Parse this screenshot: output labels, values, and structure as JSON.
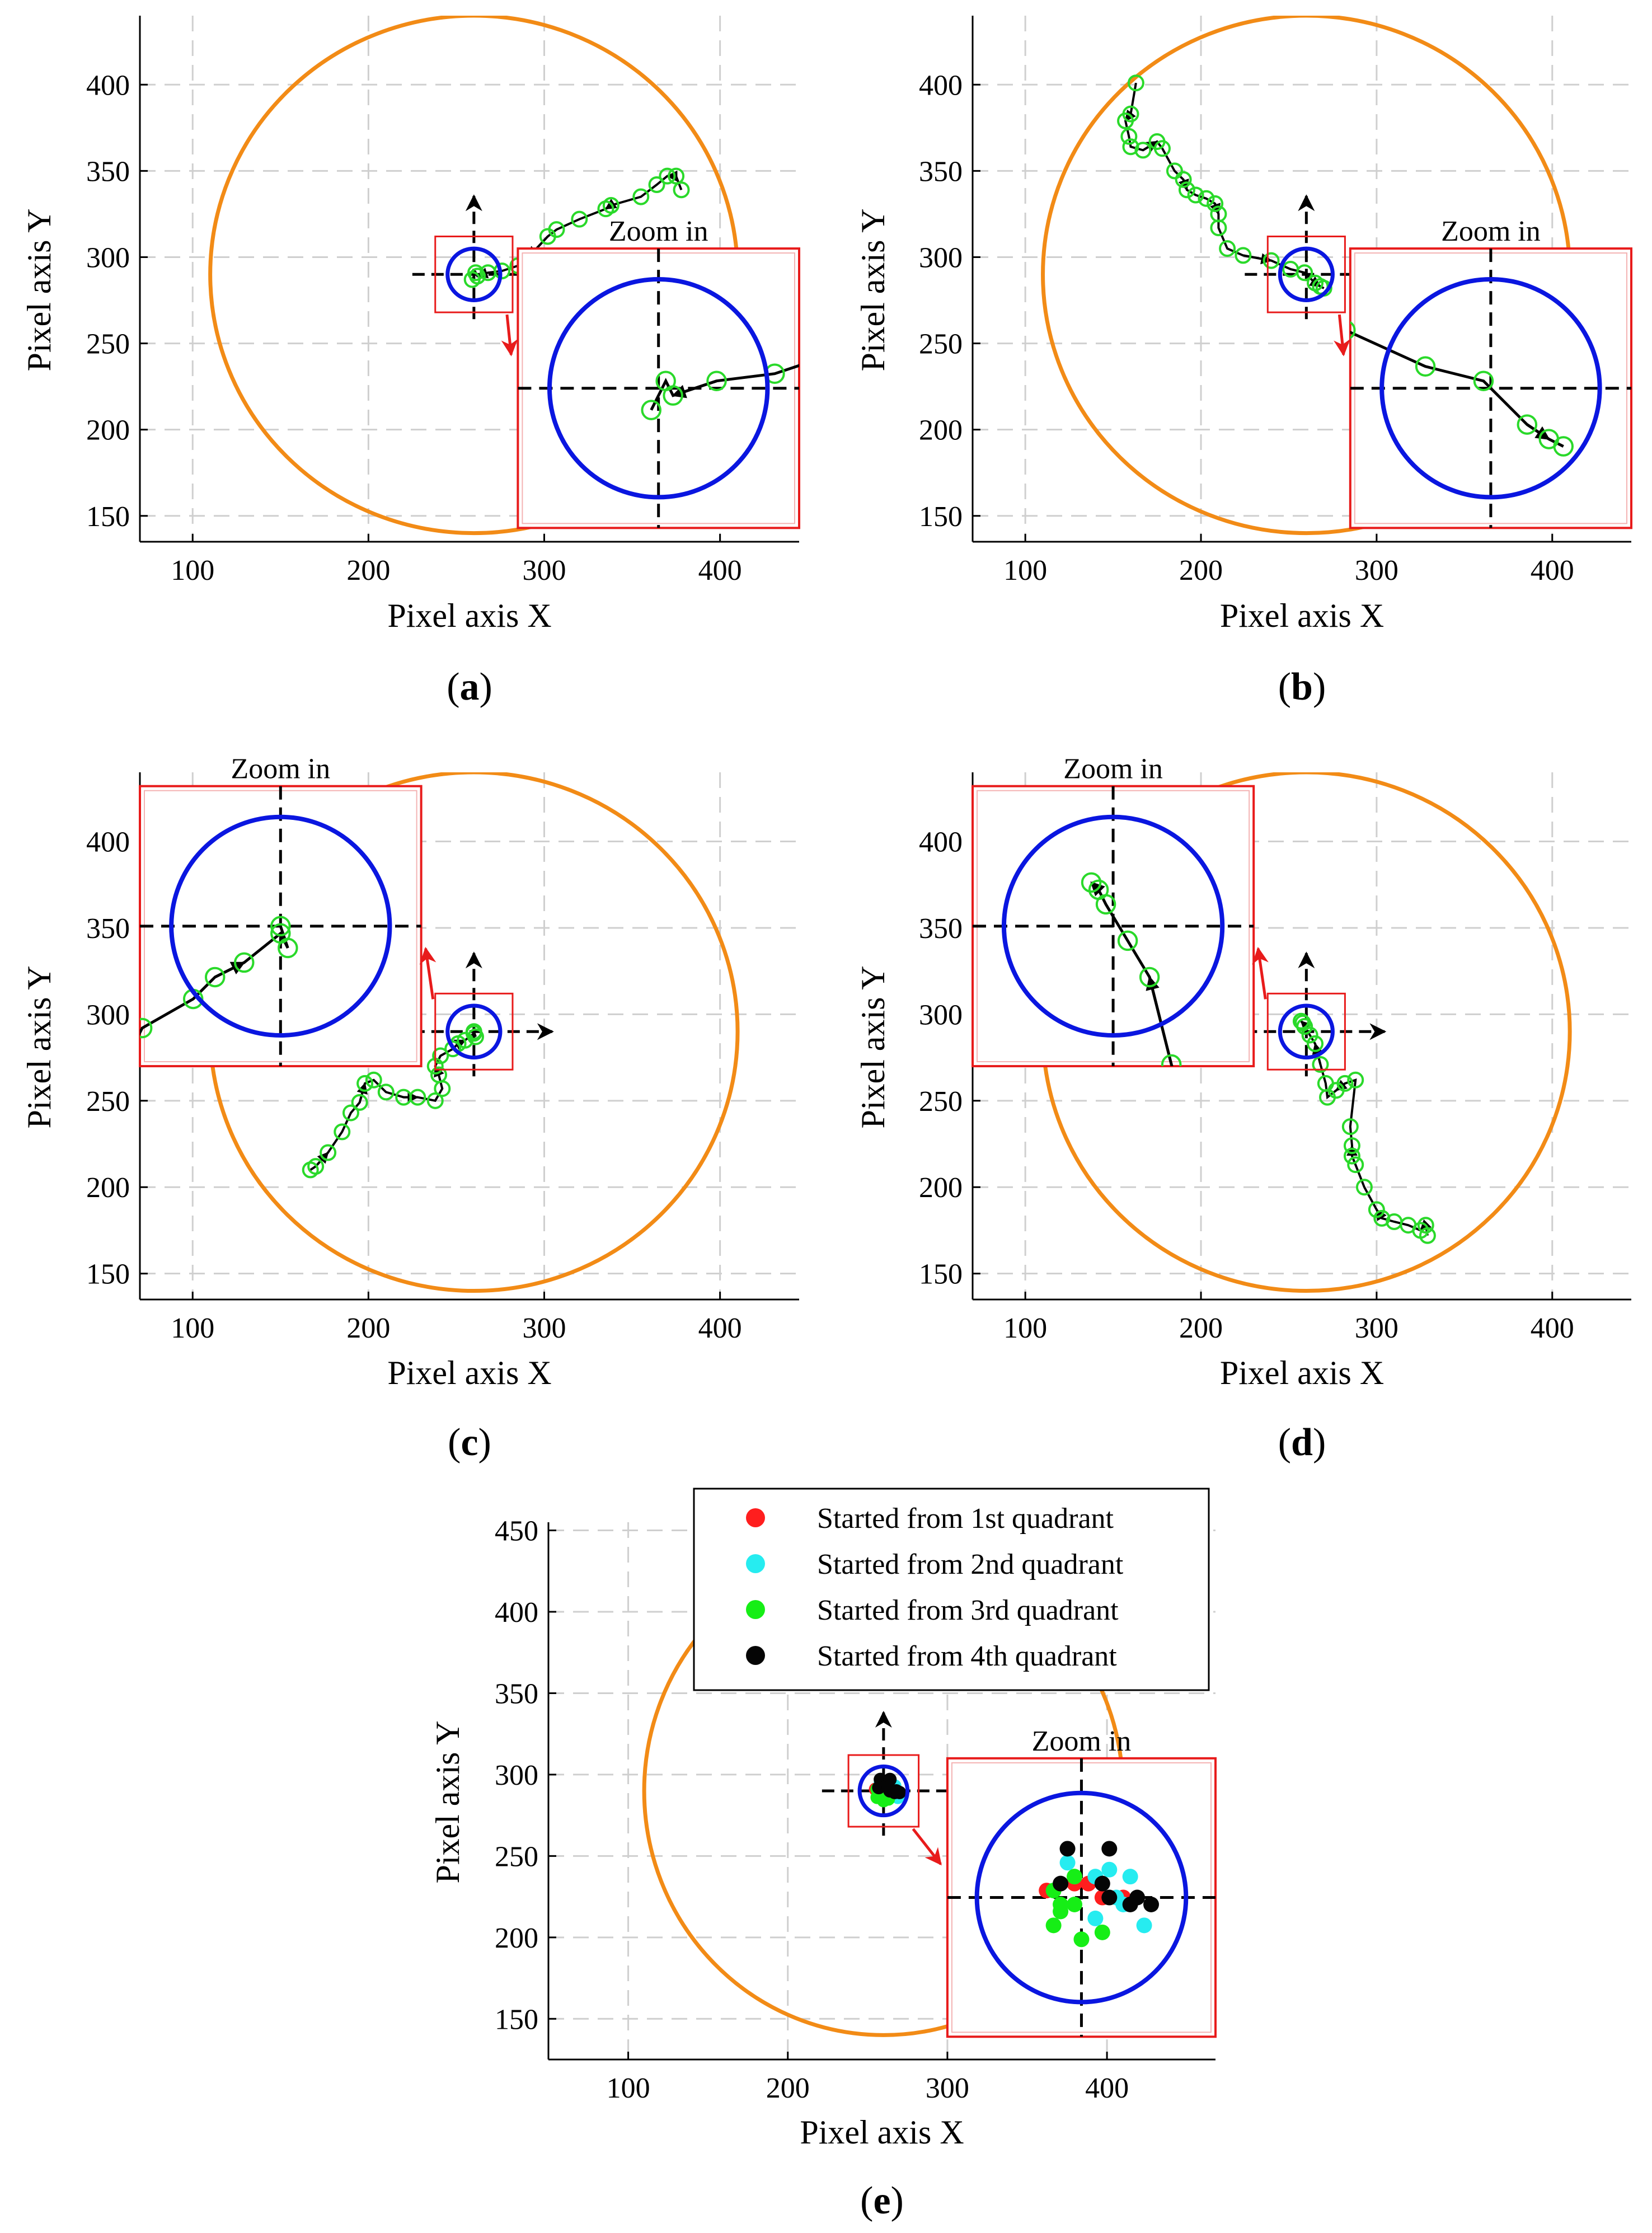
{
  "figure": {
    "zoom_label": "Zoom in",
    "colors": {
      "workspace_circle": "#F28B16",
      "target_circle": "#0A16E0",
      "zoom_box": "#E81B1B",
      "trajectory_marker": "#2AD92A",
      "trajectory_line": "#000000",
      "grid": "#CFCFCF"
    }
  },
  "chart_data": [
    {
      "type": "scatter",
      "label": "(a)",
      "label_letter": "a",
      "xlabel": "Pixel axis X",
      "ylabel": "Pixel axis Y",
      "xlim": [
        70,
        445
      ],
      "ylim": [
        135,
        440
      ],
      "xticks": [
        100,
        200,
        300,
        400
      ],
      "yticks": [
        150,
        200,
        250,
        300,
        350,
        400
      ],
      "grid": true,
      "workspace_circle": {
        "cx": 260,
        "cy": 290,
        "r": 150
      },
      "target": {
        "x": 260,
        "y": 290,
        "r": 15
      },
      "zoom_label_text": "Zoom in",
      "zoom": {
        "placement": "right",
        "window": [
          238,
          282,
          268,
          312
        ],
        "inset": [
          285,
          445,
          143,
          305
        ]
      },
      "trajectory": [
        [
          378,
          339
        ],
        [
          375,
          347
        ],
        [
          370,
          347
        ],
        [
          364,
          342
        ],
        [
          355,
          335
        ],
        [
          338,
          330
        ],
        [
          335,
          328
        ],
        [
          320,
          322
        ],
        [
          307,
          316
        ],
        [
          302,
          312
        ],
        [
          291,
          300
        ],
        [
          285,
          295
        ],
        [
          276,
          292
        ],
        [
          268,
          291
        ],
        [
          262,
          289
        ],
        [
          261,
          291
        ],
        [
          259,
          287
        ]
      ]
    },
    {
      "type": "scatter",
      "label": "(b)",
      "label_letter": "b",
      "xlabel": "Pixel axis X",
      "ylabel": "Pixel axis Y",
      "xlim": [
        70,
        445
      ],
      "ylim": [
        135,
        440
      ],
      "xticks": [
        100,
        200,
        300,
        400
      ],
      "yticks": [
        150,
        200,
        250,
        300,
        350,
        400
      ],
      "grid": true,
      "workspace_circle": {
        "cx": 260,
        "cy": 290,
        "r": 150
      },
      "target": {
        "x": 260,
        "y": 290,
        "r": 15
      },
      "zoom_label_text": "Zoom in",
      "zoom": {
        "placement": "right",
        "window": [
          238,
          282,
          268,
          312
        ],
        "inset": [
          285,
          445,
          143,
          305
        ]
      },
      "trajectory": [
        [
          163,
          401
        ],
        [
          160,
          383
        ],
        [
          157,
          379
        ],
        [
          159,
          370
        ],
        [
          160,
          364
        ],
        [
          167,
          362
        ],
        [
          175,
          367
        ],
        [
          178,
          363
        ],
        [
          185,
          350
        ],
        [
          190,
          345
        ],
        [
          192,
          339
        ],
        [
          197,
          336
        ],
        [
          203,
          334
        ],
        [
          208,
          331
        ],
        [
          210,
          325
        ],
        [
          210,
          317
        ],
        [
          215,
          305
        ],
        [
          224,
          301
        ],
        [
          240,
          298
        ],
        [
          251,
          293
        ],
        [
          259,
          291
        ],
        [
          265,
          285
        ],
        [
          268,
          283
        ],
        [
          270,
          282
        ]
      ]
    },
    {
      "type": "scatter",
      "label": "(c)",
      "label_letter": "c",
      "xlabel": "Pixel axis X",
      "ylabel": "Pixel axis Y",
      "xlim": [
        70,
        445
      ],
      "ylim": [
        135,
        440
      ],
      "xticks": [
        100,
        200,
        300,
        400
      ],
      "yticks": [
        150,
        200,
        250,
        300,
        350,
        400
      ],
      "grid": true,
      "workspace_circle": {
        "cx": 260,
        "cy": 290,
        "r": 150
      },
      "target": {
        "x": 260,
        "y": 290,
        "r": 15
      },
      "zoom_label_text": "Zoom in",
      "zoom": {
        "placement": "left",
        "window": [
          238,
          282,
          268,
          312
        ],
        "inset": [
          70,
          230,
          270,
          432
        ]
      },
      "trajectory": [
        [
          167,
          210
        ],
        [
          170,
          212
        ],
        [
          177,
          220
        ],
        [
          185,
          232
        ],
        [
          190,
          243
        ],
        [
          195,
          249
        ],
        [
          198,
          260
        ],
        [
          203,
          262
        ],
        [
          210,
          255
        ],
        [
          220,
          252
        ],
        [
          228,
          252
        ],
        [
          238,
          250
        ],
        [
          242,
          257
        ],
        [
          240,
          265
        ],
        [
          238,
          270
        ],
        [
          241,
          276
        ],
        [
          248,
          280
        ],
        [
          251,
          283
        ],
        [
          255,
          285
        ],
        [
          260,
          289
        ],
        [
          261,
          287
        ],
        [
          260,
          290
        ]
      ]
    },
    {
      "type": "scatter",
      "label": "(d)",
      "label_letter": "d",
      "xlabel": "Pixel axis X",
      "ylabel": "Pixel axis Y",
      "xlim": [
        70,
        445
      ],
      "ylim": [
        135,
        440
      ],
      "xticks": [
        100,
        200,
        300,
        400
      ],
      "yticks": [
        150,
        200,
        250,
        300,
        350,
        400
      ],
      "grid": true,
      "workspace_circle": {
        "cx": 260,
        "cy": 290,
        "r": 150
      },
      "target": {
        "x": 260,
        "y": 290,
        "r": 15
      },
      "zoom_label_text": "Zoom in",
      "zoom": {
        "placement": "left",
        "window": [
          238,
          282,
          268,
          312
        ],
        "inset": [
          70,
          230,
          270,
          432
        ]
      },
      "trajectory": [
        [
          329,
          172
        ],
        [
          328,
          178
        ],
        [
          325,
          175
        ],
        [
          318,
          178
        ],
        [
          310,
          180
        ],
        [
          303,
          182
        ],
        [
          300,
          187
        ],
        [
          293,
          200
        ],
        [
          288,
          213
        ],
        [
          286,
          218
        ],
        [
          286,
          224
        ],
        [
          285,
          235
        ],
        [
          288,
          262
        ],
        [
          282,
          260
        ],
        [
          277,
          256
        ],
        [
          272,
          252
        ],
        [
          271,
          260
        ],
        [
          268,
          271
        ],
        [
          265,
          283
        ],
        [
          262,
          288
        ],
        [
          259,
          293
        ],
        [
          258,
          295
        ],
        [
          257,
          296
        ]
      ]
    },
    {
      "type": "scatter",
      "label": "(e)",
      "label_letter": "e",
      "xlabel": "Pixel axis X",
      "ylabel": "Pixel axis Y",
      "xlim": [
        50,
        468
      ],
      "ylim": [
        125,
        455
      ],
      "xticks": [
        100,
        200,
        300,
        400
      ],
      "yticks": [
        150,
        200,
        250,
        300,
        350,
        400,
        450
      ],
      "grid": true,
      "workspace_circle": {
        "cx": 260,
        "cy": 290,
        "r": 150
      },
      "target": {
        "x": 260,
        "y": 290,
        "r": 15
      },
      "zoom_label_text": "Zoom in",
      "zoom": {
        "placement": "right",
        "window": [
          238,
          282,
          268,
          312
        ],
        "inset": [
          300,
          468,
          139,
          310
        ]
      },
      "legend": {
        "placement": "top",
        "entries": [
          {
            "label": "Started from 1st quadrant",
            "color": "#FF1E1E"
          },
          {
            "label": "Started from 2nd quadrant",
            "color": "#26ECF0"
          },
          {
            "label": "Started from 3rd quadrant",
            "color": "#16EE16"
          },
          {
            "label": "Started from 4th quadrant",
            "color": "#050505"
          }
        ]
      },
      "series": [
        {
          "name": "Started from 1st quadrant",
          "color": "#FF1E1E",
          "points": [
            [
              255,
              291
            ],
            [
              259,
              292
            ],
            [
              261,
              292
            ],
            [
              263,
              290
            ],
            [
              266,
              290
            ]
          ]
        },
        {
          "name": "Started from 2nd quadrant",
          "color": "#26ECF0",
          "points": [
            [
              258,
              295
            ],
            [
              262,
              293
            ],
            [
              264,
              294
            ],
            [
              266,
              289
            ],
            [
              262,
              287
            ],
            [
              267,
              293
            ],
            [
              269,
              286
            ],
            [
              265,
              290
            ]
          ]
        },
        {
          "name": "Started from 3rd quadrant",
          "color": "#16EE16",
          "points": [
            [
              256,
              291
            ],
            [
              259,
              293
            ],
            [
              256,
              286
            ],
            [
              260,
              284
            ],
            [
              257,
              288
            ],
            [
              259,
              289
            ],
            [
              263,
              285
            ],
            [
              257,
              289
            ]
          ]
        },
        {
          "name": "Started from 4th quadrant",
          "color": "#050505",
          "points": [
            [
              258,
              297
            ],
            [
              264,
              297
            ],
            [
              257,
              292
            ],
            [
              264,
              290
            ],
            [
              267,
              289
            ],
            [
              268,
              290
            ],
            [
              270,
              289
            ],
            [
              263,
              292
            ]
          ]
        }
      ]
    }
  ]
}
